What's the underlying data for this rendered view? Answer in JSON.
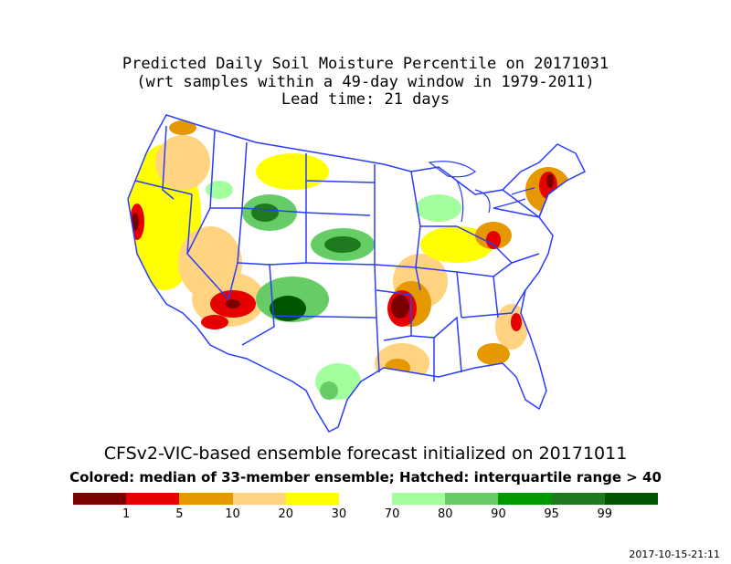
{
  "title": {
    "line1": "Predicted Daily Soil Moisture Percentile on 20171031",
    "line2": "(wrt samples within a 49-day window in 1979-2011)",
    "line3": "Lead time: 21 days"
  },
  "subtitle": {
    "line1": "CFSv2-VIC-based ensemble forecast initialized on 20171011",
    "line2": "Colored: median of 33-member ensemble; Hatched: interquartile range > 40"
  },
  "legend": {
    "swatches": [
      {
        "color": "#7a0000"
      },
      {
        "color": "#e60000"
      },
      {
        "color": "#e69800"
      },
      {
        "color": "#ffd37f"
      },
      {
        "color": "#ffff00"
      },
      {
        "color": "#ffffff"
      },
      {
        "color": "#a3ff9e"
      },
      {
        "color": "#66cc66"
      },
      {
        "color": "#009900"
      },
      {
        "color": "#1e7a1e"
      },
      {
        "color": "#005500"
      }
    ],
    "ticks": [
      "1",
      "5",
      "10",
      "20",
      "30",
      "70",
      "80",
      "90",
      "95",
      "99"
    ]
  },
  "timestamp": "2017-10-15-21:11",
  "colors": {
    "border": "#2a3cff"
  }
}
